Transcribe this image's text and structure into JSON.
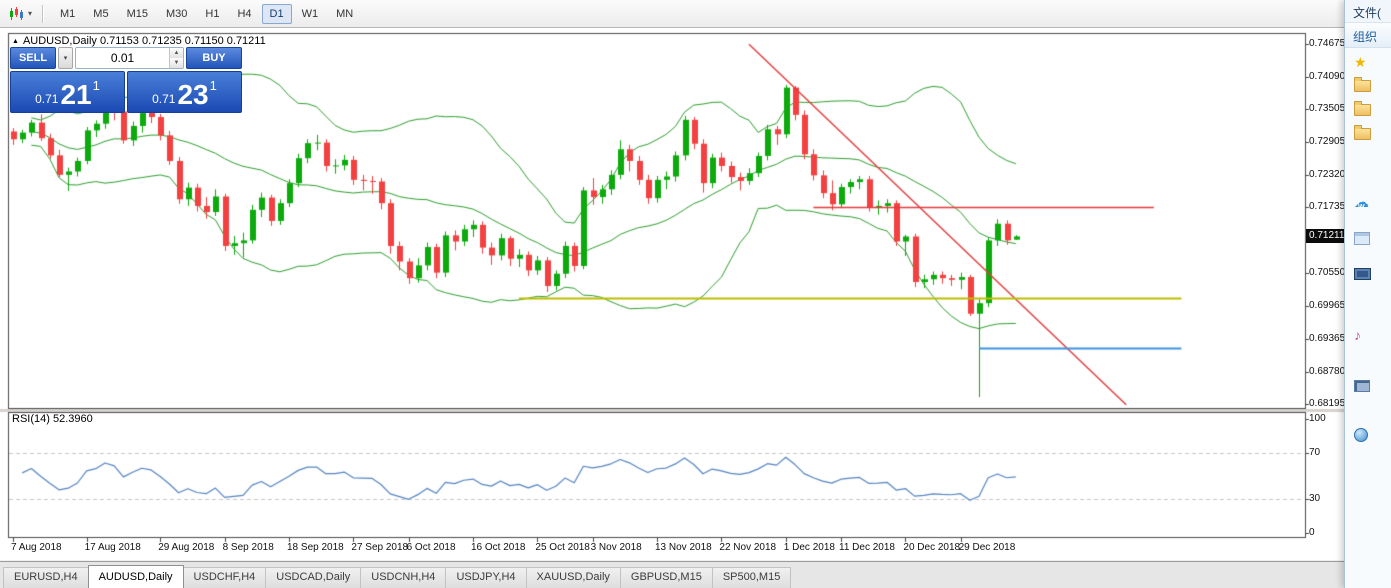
{
  "toolbar": {
    "timeframes": [
      "M1",
      "M5",
      "M15",
      "M30",
      "H1",
      "H4",
      "D1",
      "W1",
      "MN"
    ],
    "active_timeframe": "D1"
  },
  "icons": {
    "info_marker": "▲",
    "caret_down": "▾",
    "spin_up": "▲",
    "spin_down": "▼"
  },
  "chart": {
    "info_line": "AUDUSD,Daily 0.71153 0.71235 0.71150 0.71211",
    "rsi_line": "RSI(14) 52.3960"
  },
  "trade_panel": {
    "sell_label": "SELL",
    "buy_label": "BUY",
    "lot_value": "0.01",
    "sell_price": {
      "main": "0.71",
      "big": "21",
      "sup": "1"
    },
    "buy_price": {
      "main": "0.71",
      "big": "23",
      "sup": "1"
    }
  },
  "price_scale": {
    "labels": [
      "0.74675",
      "0.74090",
      "0.73505",
      "0.72905",
      "0.72320",
      "0.71735",
      "0.70550",
      "0.69965",
      "0.69365",
      "0.68780",
      "0.68195"
    ],
    "current_price_label": "0.71211"
  },
  "rsi_scale": [
    "100",
    "70",
    "30",
    "0"
  ],
  "tabs": {
    "items": [
      "EURUSD,H4",
      "AUDUSD,Daily",
      "USDCHF,H4",
      "USDCAD,Daily",
      "USDCNH,H4",
      "USDJPY,H4",
      "XAUUSD,Daily",
      "GBPUSD,M15",
      "SP500,M15"
    ],
    "active": "AUDUSD,Daily"
  },
  "explorer": {
    "file_menu_label": "文件(",
    "organize_label": "组织",
    "nav_items": [
      {
        "icon": "star-icon"
      },
      {
        "icon": "folder-icon"
      },
      {
        "icon": "folder-icon"
      },
      {
        "icon": "folder-icon"
      },
      {
        "icon": "cloud-icon",
        "badge": "W"
      },
      {
        "icon": "library-icon"
      },
      {
        "icon": "video-icon"
      },
      {
        "icon": "music-icon"
      },
      {
        "icon": "computer-icon"
      },
      {
        "icon": "network-icon"
      }
    ]
  },
  "chart_data": {
    "type": "candlestick",
    "symbol": "AUDUSD",
    "timeframe": "Daily",
    "title": "AUDUSD,Daily",
    "current_price": 0.71211,
    "ohlc_current": {
      "open": 0.71153,
      "high": 0.71235,
      "low": 0.7115,
      "close": 0.71211
    },
    "y_axis": {
      "top_price": 0.74873,
      "bottom_price": 0.68123
    },
    "x_labels": [
      {
        "text": "7 Aug 2018",
        "index": 0
      },
      {
        "text": "17 Aug 2018",
        "index": 8
      },
      {
        "text": "29 Aug 2018",
        "index": 16
      },
      {
        "text": "8 Sep 2018",
        "index": 23
      },
      {
        "text": "18 Sep 2018",
        "index": 30
      },
      {
        "text": "27 Sep 2018",
        "index": 37
      },
      {
        "text": "6 Oct 2018",
        "index": 43
      },
      {
        "text": "16 Oct 2018",
        "index": 50
      },
      {
        "text": "25 Oct 2018",
        "index": 57
      },
      {
        "text": "3 Nov 2018",
        "index": 63
      },
      {
        "text": "13 Nov 2018",
        "index": 70
      },
      {
        "text": "22 Nov 2018",
        "index": 77
      },
      {
        "text": "1 Dec 2018",
        "index": 84
      },
      {
        "text": "11 Dec 2018",
        "index": 90
      },
      {
        "text": "20 Dec 2018",
        "index": 97
      },
      {
        "text": "29 Dec 2018",
        "index": 103
      }
    ],
    "indicators": {
      "bollinger_bands": {
        "period": 20,
        "deviations": 2,
        "color": "#2f9e2f"
      },
      "rsi": {
        "period": 14,
        "current_value": 52.396,
        "color": "#5585c2",
        "levels": [
          100,
          70,
          30,
          0
        ],
        "dashed_levels": [
          70,
          30
        ]
      }
    },
    "objects": [
      {
        "type": "trendline",
        "color": "#e23b3b",
        "points": [
          {
            "index": 80,
            "price": 0.7467
          },
          {
            "index": 121,
            "price": 0.6818
          }
        ]
      },
      {
        "type": "hline",
        "color": "#e23b3b",
        "price": 0.71735,
        "from_index": 87,
        "to_index": 124
      },
      {
        "type": "hline",
        "color": "#bcbe00",
        "price": 0.701,
        "from_index": 55,
        "to_index": 127
      },
      {
        "type": "hline",
        "color": "#3d94dd",
        "price": 0.692,
        "from_index": 105,
        "to_index": 127
      }
    ],
    "colors": {
      "bull": "#0caa0c",
      "bear": "#f34040",
      "background": "#ffffff"
    },
    "candles": [
      [
        0.731,
        0.7316,
        0.7286,
        0.7296
      ],
      [
        0.7296,
        0.7313,
        0.7289,
        0.7308
      ],
      [
        0.7308,
        0.7331,
        0.7301,
        0.7326
      ],
      [
        0.7326,
        0.7341,
        0.7293,
        0.7298
      ],
      [
        0.7298,
        0.7306,
        0.7261,
        0.7267
      ],
      [
        0.7267,
        0.7277,
        0.7228,
        0.7232
      ],
      [
        0.7232,
        0.7245,
        0.7203,
        0.7238
      ],
      [
        0.7238,
        0.7263,
        0.7229,
        0.7257
      ],
      [
        0.7257,
        0.7318,
        0.7251,
        0.7312
      ],
      [
        0.7312,
        0.733,
        0.73,
        0.7324
      ],
      [
        0.7324,
        0.7368,
        0.7315,
        0.7358
      ],
      [
        0.7358,
        0.7365,
        0.733,
        0.7346
      ],
      [
        0.7346,
        0.7352,
        0.7288,
        0.7294
      ],
      [
        0.7294,
        0.7328,
        0.7284,
        0.732
      ],
      [
        0.732,
        0.735,
        0.7308,
        0.7344
      ],
      [
        0.7344,
        0.736,
        0.7325,
        0.7336
      ],
      [
        0.7336,
        0.7342,
        0.7294,
        0.7303
      ],
      [
        0.7303,
        0.7311,
        0.725,
        0.7257
      ],
      [
        0.7257,
        0.7264,
        0.718,
        0.7188
      ],
      [
        0.7188,
        0.7218,
        0.7176,
        0.7209
      ],
      [
        0.7209,
        0.7216,
        0.7166,
        0.7176
      ],
      [
        0.7176,
        0.7192,
        0.7153,
        0.7165
      ],
      [
        0.7165,
        0.7206,
        0.7158,
        0.7193
      ],
      [
        0.7193,
        0.7198,
        0.7095,
        0.7104
      ],
      [
        0.7104,
        0.7122,
        0.7088,
        0.7109
      ],
      [
        0.7109,
        0.7128,
        0.7083,
        0.7114
      ],
      [
        0.7114,
        0.7178,
        0.7108,
        0.7169
      ],
      [
        0.7169,
        0.72,
        0.7156,
        0.7191
      ],
      [
        0.7191,
        0.7196,
        0.714,
        0.7149
      ],
      [
        0.7149,
        0.7188,
        0.7142,
        0.7181
      ],
      [
        0.7181,
        0.7224,
        0.7174,
        0.7217
      ],
      [
        0.7217,
        0.727,
        0.721,
        0.7262
      ],
      [
        0.7262,
        0.7296,
        0.7253,
        0.7289
      ],
      [
        0.7289,
        0.7304,
        0.7276,
        0.729
      ],
      [
        0.729,
        0.7296,
        0.7238,
        0.7248
      ],
      [
        0.7248,
        0.726,
        0.7234,
        0.7249
      ],
      [
        0.7249,
        0.7268,
        0.724,
        0.7259
      ],
      [
        0.7259,
        0.7266,
        0.7214,
        0.7223
      ],
      [
        0.7223,
        0.7232,
        0.7204,
        0.7221
      ],
      [
        0.7221,
        0.723,
        0.7198,
        0.722
      ],
      [
        0.722,
        0.7226,
        0.717,
        0.7181
      ],
      [
        0.7181,
        0.7188,
        0.709,
        0.7104
      ],
      [
        0.7104,
        0.7112,
        0.706,
        0.7076
      ],
      [
        0.7076,
        0.7082,
        0.7036,
        0.7046
      ],
      [
        0.7046,
        0.7082,
        0.7038,
        0.7069
      ],
      [
        0.7069,
        0.711,
        0.706,
        0.7102
      ],
      [
        0.7102,
        0.7108,
        0.7046,
        0.7056
      ],
      [
        0.7056,
        0.713,
        0.7048,
        0.7123
      ],
      [
        0.7123,
        0.7132,
        0.7096,
        0.7112
      ],
      [
        0.7112,
        0.7142,
        0.7104,
        0.7134
      ],
      [
        0.7134,
        0.715,
        0.712,
        0.7142
      ],
      [
        0.7142,
        0.7148,
        0.709,
        0.7101
      ],
      [
        0.7101,
        0.711,
        0.707,
        0.7087
      ],
      [
        0.7087,
        0.7126,
        0.7078,
        0.7118
      ],
      [
        0.7118,
        0.7122,
        0.7068,
        0.7081
      ],
      [
        0.7081,
        0.7098,
        0.7066,
        0.7088
      ],
      [
        0.7088,
        0.7094,
        0.705,
        0.706
      ],
      [
        0.706,
        0.7086,
        0.7052,
        0.7078
      ],
      [
        0.7078,
        0.7084,
        0.7021,
        0.7032
      ],
      [
        0.7032,
        0.706,
        0.7024,
        0.7054
      ],
      [
        0.7054,
        0.7112,
        0.7046,
        0.7104
      ],
      [
        0.7104,
        0.711,
        0.7058,
        0.7068
      ],
      [
        0.7068,
        0.721,
        0.7062,
        0.7204
      ],
      [
        0.7204,
        0.7226,
        0.7178,
        0.7192
      ],
      [
        0.7192,
        0.7214,
        0.718,
        0.7206
      ],
      [
        0.7206,
        0.724,
        0.7196,
        0.7232
      ],
      [
        0.7232,
        0.7294,
        0.7224,
        0.7278
      ],
      [
        0.7278,
        0.7286,
        0.7238,
        0.7257
      ],
      [
        0.7257,
        0.7266,
        0.7214,
        0.7223
      ],
      [
        0.7223,
        0.7232,
        0.718,
        0.719
      ],
      [
        0.719,
        0.723,
        0.7182,
        0.7223
      ],
      [
        0.7223,
        0.7238,
        0.7206,
        0.7229
      ],
      [
        0.7229,
        0.7274,
        0.722,
        0.7267
      ],
      [
        0.7267,
        0.7338,
        0.7258,
        0.7331
      ],
      [
        0.7331,
        0.7336,
        0.7278,
        0.7288
      ],
      [
        0.7288,
        0.7296,
        0.72,
        0.7217
      ],
      [
        0.7217,
        0.727,
        0.7208,
        0.7263
      ],
      [
        0.7263,
        0.7272,
        0.7238,
        0.7248
      ],
      [
        0.7248,
        0.7256,
        0.7218,
        0.7228
      ],
      [
        0.7228,
        0.7236,
        0.7204,
        0.7221
      ],
      [
        0.7221,
        0.7244,
        0.7214,
        0.7235
      ],
      [
        0.7235,
        0.7272,
        0.7228,
        0.7266
      ],
      [
        0.7266,
        0.7322,
        0.7258,
        0.7314
      ],
      [
        0.7314,
        0.732,
        0.7286,
        0.7305
      ],
      [
        0.7305,
        0.7394,
        0.7298,
        0.7389
      ],
      [
        0.7389,
        0.7392,
        0.733,
        0.734
      ],
      [
        0.734,
        0.7348,
        0.726,
        0.7269
      ],
      [
        0.7269,
        0.7278,
        0.7222,
        0.7231
      ],
      [
        0.7231,
        0.724,
        0.719,
        0.7199
      ],
      [
        0.7199,
        0.7222,
        0.7168,
        0.7179
      ],
      [
        0.7179,
        0.7216,
        0.7172,
        0.721
      ],
      [
        0.721,
        0.7224,
        0.7198,
        0.7219
      ],
      [
        0.7219,
        0.723,
        0.7206,
        0.7224
      ],
      [
        0.7224,
        0.723,
        0.7166,
        0.7174
      ],
      [
        0.7174,
        0.7186,
        0.716,
        0.7176
      ],
      [
        0.7176,
        0.7188,
        0.7164,
        0.7181
      ],
      [
        0.7181,
        0.7186,
        0.7104,
        0.7112
      ],
      [
        0.7112,
        0.7124,
        0.7086,
        0.7121
      ],
      [
        0.7121,
        0.7126,
        0.703,
        0.7039
      ],
      [
        0.7039,
        0.7052,
        0.7028,
        0.7044
      ],
      [
        0.7044,
        0.7058,
        0.7034,
        0.7052
      ],
      [
        0.7052,
        0.7058,
        0.7036,
        0.7046
      ],
      [
        0.7046,
        0.7052,
        0.7032,
        0.7043
      ],
      [
        0.7043,
        0.7056,
        0.7026,
        0.7048
      ],
      [
        0.7048,
        0.7052,
        0.6978,
        0.6982
      ],
      [
        0.6982,
        0.7008,
        0.6832,
        0.7001
      ],
      [
        0.7001,
        0.712,
        0.6994,
        0.7114
      ],
      [
        0.7114,
        0.7152,
        0.7104,
        0.7144
      ],
      [
        0.7144,
        0.715,
        0.7106,
        0.7114
      ],
      [
        0.71153,
        0.71235,
        0.7115,
        0.71211
      ]
    ]
  }
}
